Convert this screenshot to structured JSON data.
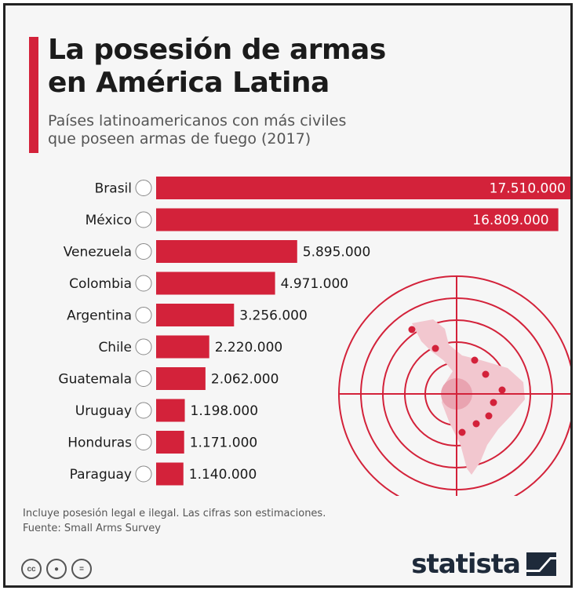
{
  "header": {
    "title_line1": "La posesión de armas",
    "title_line2": "en América Latina",
    "subtitle_line1": "Países latinoamericanos con más civiles",
    "subtitle_line2": "que poseen armas de fuego (2017)"
  },
  "footer": {
    "note": "Incluye posesión legal e ilegal. Las cifras son estimaciones.",
    "source": "Fuente: Small Arms Survey",
    "brand": "statista",
    "license_icons": [
      "creative-commons-icon",
      "attribution-icon",
      "no-derivatives-icon"
    ]
  },
  "colors": {
    "bar": "#d3223a",
    "accent": "#d3223a",
    "text": "#1b1b1b"
  },
  "chart_data": {
    "type": "bar",
    "orientation": "horizontal",
    "categories": [
      "Brasil",
      "México",
      "Venezuela",
      "Colombia",
      "Argentina",
      "Chile",
      "Guatemala",
      "Uruguay",
      "Honduras",
      "Paraguay"
    ],
    "values": [
      17510000,
      16809000,
      5895000,
      4971000,
      3256000,
      2220000,
      2062000,
      1198000,
      1171000,
      1140000
    ],
    "value_labels": [
      "17.510.000",
      "16.809.000",
      "5.895.000",
      "4.971.000",
      "3.256.000",
      "2.220.000",
      "2.062.000",
      "1.198.000",
      "1.171.000",
      "1.140.000"
    ],
    "flags": [
      "brazil-flag-icon",
      "mexico-flag-icon",
      "venezuela-flag-icon",
      "colombia-flag-icon",
      "argentina-flag-icon",
      "chile-flag-icon",
      "guatemala-flag-icon",
      "uruguay-flag-icon",
      "honduras-flag-icon",
      "paraguay-flag-icon"
    ],
    "xlim": [
      0,
      17510000
    ],
    "grid": false,
    "legend": "none"
  }
}
